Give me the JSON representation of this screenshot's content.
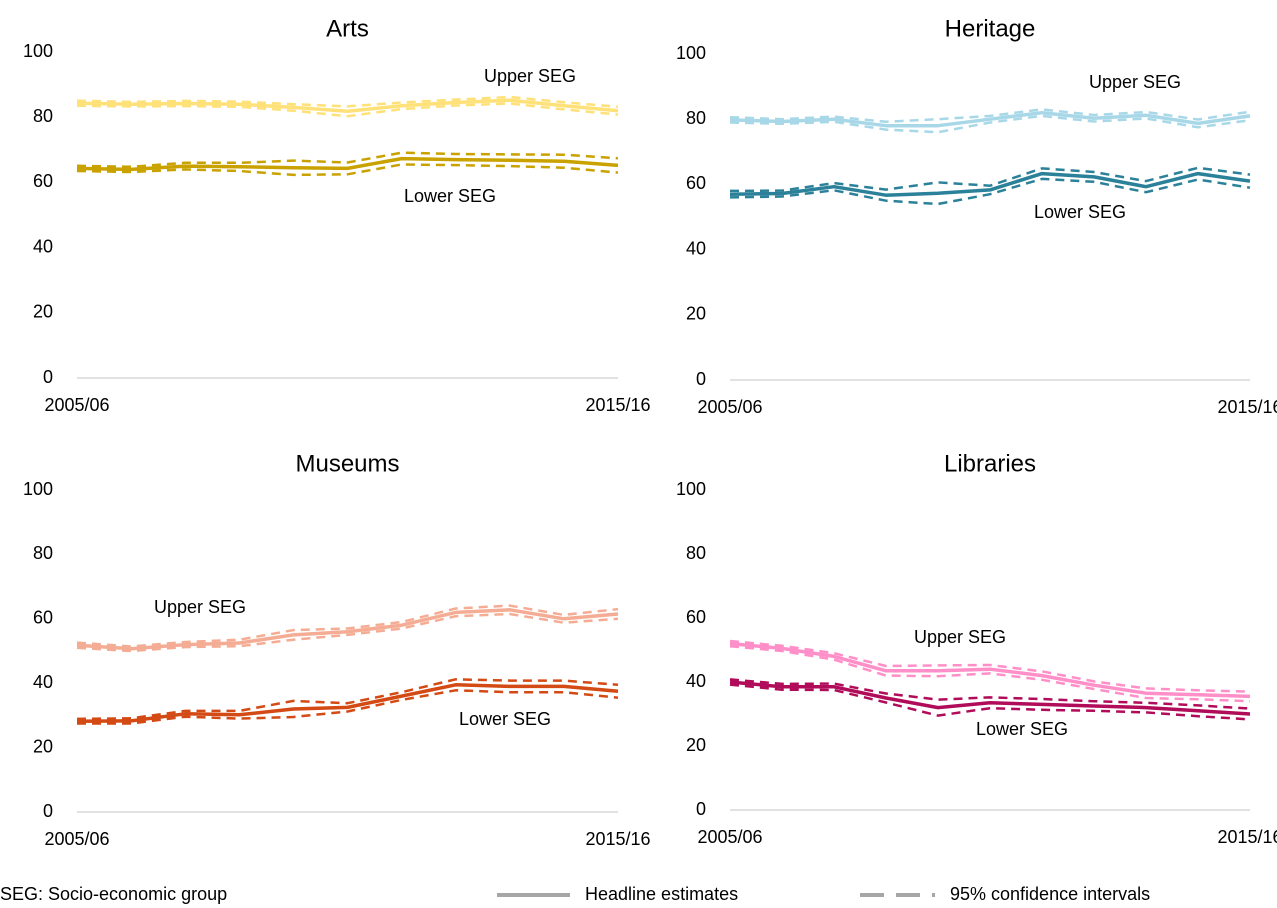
{
  "chart_data": [
    {
      "type": "line",
      "title": "Arts",
      "categories": [
        "2005/06",
        null,
        null,
        null,
        null,
        null,
        null,
        null,
        null,
        null,
        "2015/16"
      ],
      "ylim": [
        0,
        100
      ],
      "yticks": [
        0,
        20,
        40,
        60,
        80,
        100
      ],
      "series": [
        {
          "name": "Upper SEG",
          "color": "#ffe17a",
          "values": [
            84.3,
            84,
            84.2,
            84,
            83,
            81.8,
            83.5,
            84.5,
            85.2,
            83.5,
            82
          ],
          "ci_low": [
            83.5,
            83.3,
            83.4,
            83.2,
            82,
            80.3,
            82.5,
            83.6,
            84.2,
            82.4,
            80.8
          ],
          "ci_high": [
            85.1,
            84.7,
            85,
            84.8,
            84,
            83.3,
            84.5,
            85.4,
            86.2,
            84.6,
            83.2
          ]
        },
        {
          "name": "Lower SEG",
          "color": "#c9a200",
          "values": [
            64.3,
            64,
            65,
            64.8,
            64.5,
            64.3,
            67.3,
            67,
            66.8,
            66.5,
            65.2
          ],
          "ci_low": [
            63.5,
            63.2,
            64,
            63.5,
            62.3,
            62.5,
            65.5,
            65.3,
            65,
            64.5,
            63
          ],
          "ci_high": [
            65.1,
            64.8,
            66,
            66,
            66.7,
            66.1,
            69.1,
            68.7,
            68.6,
            68.5,
            67.4
          ]
        }
      ]
    },
    {
      "type": "line",
      "title": "Heritage",
      "categories": [
        "2005/06",
        null,
        null,
        null,
        null,
        null,
        null,
        null,
        null,
        null,
        "2015/16"
      ],
      "ylim": [
        0,
        100
      ],
      "yticks": [
        0,
        20,
        40,
        60,
        80,
        100
      ],
      "series": [
        {
          "name": "Upper SEG",
          "color": "#a8d8e8",
          "values": [
            79.8,
            79.3,
            80,
            78,
            78,
            80,
            82,
            80.3,
            81.2,
            78.7,
            81
          ],
          "ci_low": [
            79,
            78.6,
            79.2,
            76.8,
            76,
            79,
            81,
            79.3,
            80.2,
            77.5,
            79.7
          ],
          "ci_high": [
            80.6,
            80,
            80.8,
            79.2,
            80,
            81,
            83,
            81.3,
            82.2,
            79.9,
            82.3
          ]
        },
        {
          "name": "Lower SEG",
          "color": "#2a8199",
          "values": [
            57,
            57.2,
            59.3,
            56.7,
            57.3,
            58.3,
            63.3,
            62.3,
            59.3,
            63.3,
            61
          ],
          "ci_low": [
            56,
            56.3,
            58.2,
            55,
            54,
            57,
            61.7,
            60.8,
            57.6,
            61.5,
            59
          ],
          "ci_high": [
            58,
            58.1,
            60.4,
            58.4,
            60.6,
            59.6,
            64.9,
            63.8,
            61,
            65.1,
            63
          ]
        }
      ]
    },
    {
      "type": "line",
      "title": "Museums",
      "categories": [
        "2005/06",
        null,
        null,
        null,
        null,
        null,
        null,
        null,
        null,
        null,
        "2015/16"
      ],
      "ylim": [
        0,
        100
      ],
      "yticks": [
        0,
        20,
        40,
        60,
        80,
        100
      ],
      "series": [
        {
          "name": "Upper SEG",
          "color": "#f4ad94",
          "values": [
            51.8,
            50.7,
            52,
            52.5,
            55,
            56,
            58,
            62,
            62.8,
            60,
            61.5
          ],
          "ci_low": [
            51,
            50,
            51.2,
            51.5,
            53.5,
            55,
            57,
            60.8,
            61.5,
            58.8,
            60
          ],
          "ci_high": [
            52.6,
            51.4,
            52.8,
            53.5,
            56.5,
            57,
            59,
            63.2,
            64.1,
            61.2,
            63
          ]
        },
        {
          "name": "Lower SEG",
          "color": "#d34a14",
          "values": [
            28.2,
            28.3,
            30.5,
            30.2,
            32,
            32.5,
            36,
            39.5,
            39,
            39,
            37.5
          ],
          "ci_low": [
            27.5,
            27.5,
            29.6,
            29,
            29.5,
            31.2,
            34.8,
            37.8,
            37.2,
            37.2,
            35.5
          ],
          "ci_high": [
            28.9,
            29.1,
            31.4,
            31.4,
            34.5,
            33.8,
            37.2,
            41.2,
            40.8,
            40.8,
            39.5
          ]
        }
      ]
    },
    {
      "type": "line",
      "title": "Libraries",
      "categories": [
        "2005/06",
        null,
        null,
        null,
        null,
        null,
        null,
        null,
        null,
        null,
        "2015/16"
      ],
      "ylim": [
        0,
        100
      ],
      "yticks": [
        0,
        20,
        40,
        60,
        80,
        100
      ],
      "series": [
        {
          "name": "Upper SEG",
          "color": "#ff8fc8",
          "values": [
            52,
            50.5,
            48,
            43.5,
            43.5,
            44,
            42,
            39,
            36.5,
            36,
            35.5
          ],
          "ci_low": [
            51.2,
            49.7,
            47,
            42,
            41.8,
            42.7,
            40.7,
            37.8,
            35,
            34.6,
            34
          ],
          "ci_high": [
            52.8,
            51.3,
            49,
            45,
            45.2,
            45.3,
            43.3,
            40.2,
            38,
            37.4,
            37
          ]
        },
        {
          "name": "Lower SEG",
          "color": "#b00c5a",
          "values": [
            40,
            38.5,
            38.5,
            35,
            32,
            33.5,
            33,
            32.5,
            32,
            31,
            30
          ],
          "ci_low": [
            39.2,
            37.6,
            37.5,
            33.6,
            29.5,
            31.8,
            31.3,
            31,
            30.5,
            29.3,
            28.3
          ],
          "ci_high": [
            40.8,
            39.4,
            39.5,
            36.4,
            34.5,
            35.2,
            34.7,
            34,
            33.5,
            32.7,
            31.7
          ]
        }
      ]
    }
  ],
  "footer": {
    "note": "SEG: Socio-economic group",
    "legend": [
      "Headline estimates",
      "95% confidence intervals"
    ]
  }
}
